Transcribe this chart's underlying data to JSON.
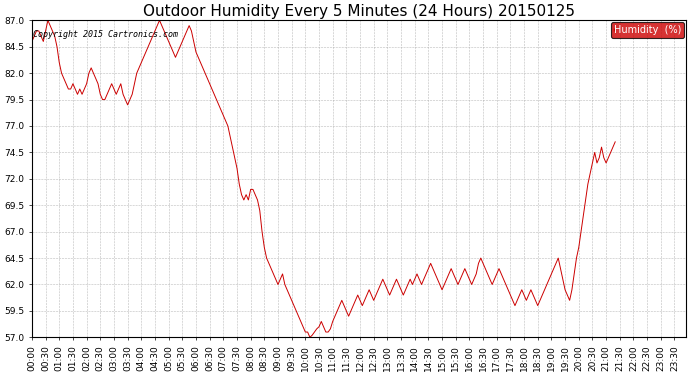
{
  "title": "Outdoor Humidity Every 5 Minutes (24 Hours) 20150125",
  "copyright_text": "Copyright 2015 Cartronics.com",
  "legend_label": "Humidity  (%)",
  "ylim": [
    57.0,
    87.0
  ],
  "yticks": [
    57.0,
    59.5,
    62.0,
    64.5,
    67.0,
    69.5,
    72.0,
    74.5,
    77.0,
    79.5,
    82.0,
    84.5,
    87.0
  ],
  "line_color": "#cc0000",
  "legend_bg": "#cc0000",
  "legend_text_color": "#ffffff",
  "bg_color": "#ffffff",
  "grid_color": "#aaaaaa",
  "title_fontsize": 11,
  "tick_fontsize": 6.5,
  "humidity_values": [
    85.0,
    85.5,
    86.0,
    86.0,
    85.5,
    85.0,
    86.0,
    87.0,
    86.5,
    86.0,
    85.5,
    84.5,
    83.0,
    82.0,
    81.5,
    81.0,
    80.5,
    80.5,
    81.0,
    80.5,
    80.0,
    80.5,
    80.0,
    80.5,
    81.0,
    82.0,
    82.5,
    82.0,
    81.5,
    81.0,
    80.0,
    79.5,
    79.5,
    80.0,
    80.5,
    81.0,
    80.5,
    80.0,
    80.5,
    81.0,
    80.0,
    79.5,
    79.0,
    79.5,
    80.0,
    81.0,
    82.0,
    82.5,
    83.0,
    83.5,
    84.0,
    84.5,
    85.0,
    85.5,
    86.0,
    86.5,
    87.0,
    86.5,
    86.0,
    85.5,
    85.0,
    84.5,
    84.0,
    83.5,
    84.0,
    84.5,
    85.0,
    85.5,
    86.0,
    86.5,
    86.0,
    85.0,
    84.0,
    83.5,
    83.0,
    82.5,
    82.0,
    81.5,
    81.0,
    80.5,
    80.0,
    79.5,
    79.0,
    78.5,
    78.0,
    77.5,
    77.0,
    76.0,
    75.0,
    74.0,
    73.0,
    71.5,
    70.5,
    70.0,
    70.5,
    70.0,
    71.0,
    71.0,
    70.5,
    70.0,
    69.0,
    67.0,
    65.5,
    64.5,
    64.0,
    63.5,
    63.0,
    62.5,
    62.0,
    62.5,
    63.0,
    62.0,
    61.5,
    61.0,
    60.5,
    60.0,
    59.5,
    59.0,
    58.5,
    58.0,
    57.5,
    57.5,
    57.0,
    57.2,
    57.5,
    57.8,
    58.0,
    58.5,
    58.0,
    57.5,
    57.5,
    57.8,
    58.5,
    59.0,
    59.5,
    60.0,
    60.5,
    60.0,
    59.5,
    59.0,
    59.5,
    60.0,
    60.5,
    61.0,
    60.5,
    60.0,
    60.5,
    61.0,
    61.5,
    61.0,
    60.5,
    61.0,
    61.5,
    62.0,
    62.5,
    62.0,
    61.5,
    61.0,
    61.5,
    62.0,
    62.5,
    62.0,
    61.5,
    61.0,
    61.5,
    62.0,
    62.5,
    62.0,
    62.5,
    63.0,
    62.5,
    62.0,
    62.5,
    63.0,
    63.5,
    64.0,
    63.5,
    63.0,
    62.5,
    62.0,
    61.5,
    62.0,
    62.5,
    63.0,
    63.5,
    63.0,
    62.5,
    62.0,
    62.5,
    63.0,
    63.5,
    63.0,
    62.5,
    62.0,
    62.5,
    63.0,
    64.0,
    64.5,
    64.0,
    63.5,
    63.0,
    62.5,
    62.0,
    62.5,
    63.0,
    63.5,
    63.0,
    62.5,
    62.0,
    61.5,
    61.0,
    60.5,
    60.0,
    60.5,
    61.0,
    61.5,
    61.0,
    60.5,
    61.0,
    61.5,
    61.0,
    60.5,
    60.0,
    60.5,
    61.0,
    61.5,
    62.0,
    62.5,
    63.0,
    63.5,
    64.0,
    64.5,
    63.5,
    62.5,
    61.5,
    61.0,
    60.5,
    61.5,
    63.0,
    64.5,
    65.5,
    67.0,
    68.5,
    70.0,
    71.5,
    72.5,
    73.5,
    74.5,
    73.5,
    74.0,
    75.0,
    74.0,
    73.5,
    74.0,
    74.5,
    75.0,
    75.5
  ],
  "x_tick_step": 6,
  "total_points": 288
}
